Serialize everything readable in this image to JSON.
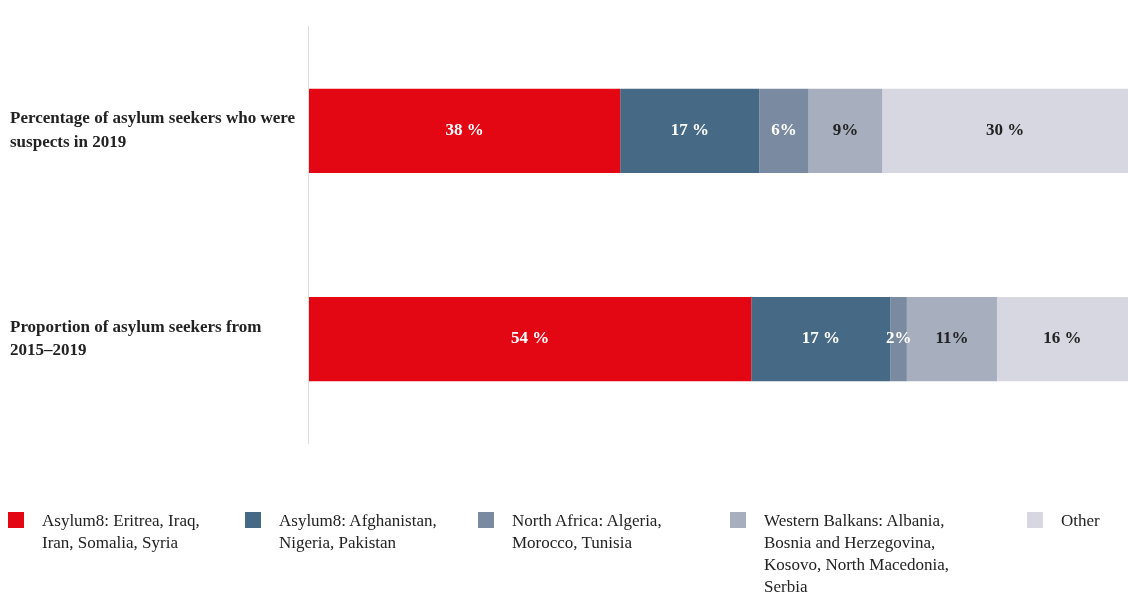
{
  "chart_data": {
    "type": "bar",
    "orientation": "horizontal",
    "stacked": true,
    "legend": "bottom",
    "tick_labels": "y",
    "categories": [
      "Percentage of asylum seekers who were suspects in 2019",
      "Proportion of asylum seekers from 2015–2019"
    ],
    "series": [
      {
        "name": "Asylum8: Eritrea, Iraq, Iran, Somalia, Syria",
        "color": "#e30613",
        "values": [
          38,
          54
        ],
        "value_labels": [
          "38 %",
          "54 %"
        ]
      },
      {
        "name": "Asylum8: Afghanistan, Nigeria, Pakistan",
        "color": "#466a85",
        "values": [
          17,
          17
        ],
        "value_labels": [
          "17 %",
          "17 %"
        ]
      },
      {
        "name": "North Africa: Algeria, Morocco, Tunisia",
        "color": "#7a8aa0",
        "values": [
          6,
          2
        ],
        "value_labels": [
          "6%",
          "2%"
        ]
      },
      {
        "name": "Western Balkans: Albania, Bosnia and Herzegovina, Kosovo, North Macedonia, Serbia",
        "color": "#a7aebe",
        "values": [
          9,
          11
        ],
        "value_labels": [
          "9%",
          "11%"
        ]
      },
      {
        "name": "Other",
        "color": "#d6d7e0",
        "values": [
          30,
          16
        ],
        "value_labels": [
          "30 %",
          "16 %"
        ]
      }
    ]
  }
}
